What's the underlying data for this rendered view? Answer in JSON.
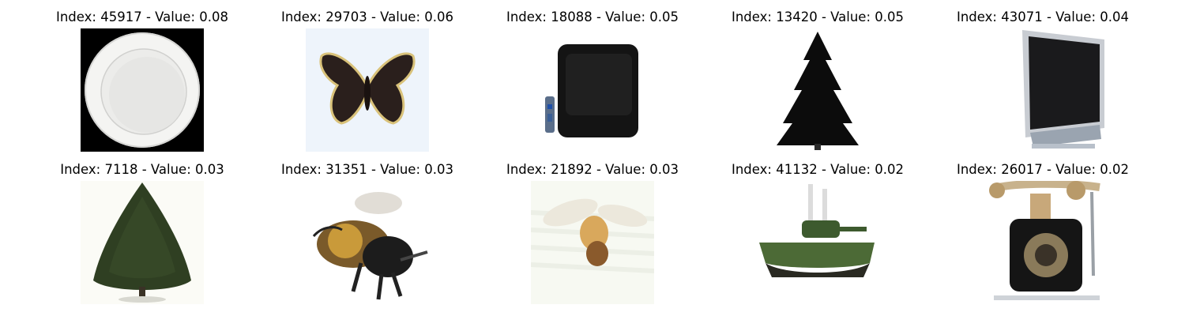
{
  "grid": {
    "items": [
      {
        "title": "Index: 45917 - Value: 0.08",
        "subject": "plate"
      },
      {
        "title": "Index: 29703 - Value: 0.06",
        "subject": "butterfly"
      },
      {
        "title": "Index: 18088 - Value: 0.05",
        "subject": "television-with-remote"
      },
      {
        "title": "Index: 13420 - Value: 0.05",
        "subject": "pine-tree"
      },
      {
        "title": "Index: 43071 - Value: 0.04",
        "subject": "flat-screen-television"
      },
      {
        "title": "Index: 7118 - Value: 0.03",
        "subject": "tree"
      },
      {
        "title": "Index: 31351 - Value: 0.03",
        "subject": "bee"
      },
      {
        "title": "Index: 21892 - Value: 0.03",
        "subject": "bee-in-flight"
      },
      {
        "title": "Index: 41132 - Value: 0.02",
        "subject": "tank"
      },
      {
        "title": "Index: 26017 - Value: 0.02",
        "subject": "telephone"
      }
    ]
  }
}
